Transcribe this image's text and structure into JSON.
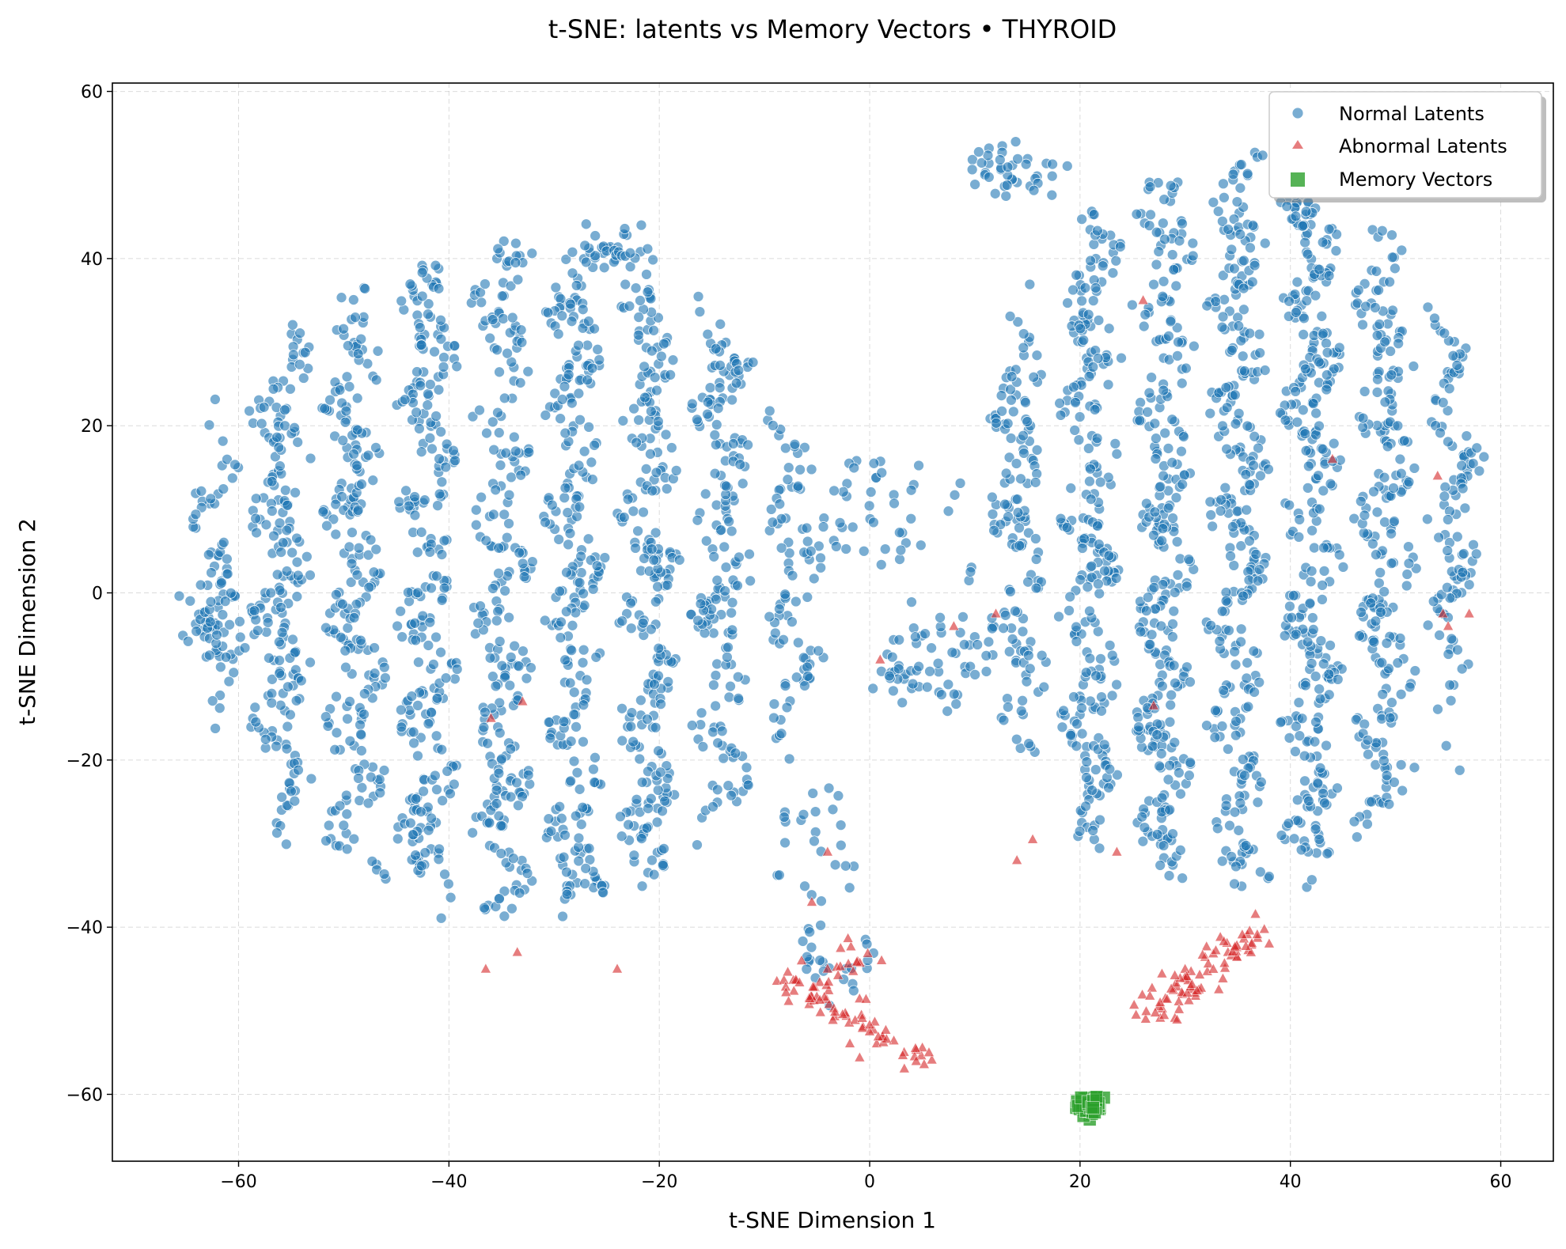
{
  "chart_data": {
    "type": "scatter",
    "title": "t-SNE: latents vs Memory Vectors • THYROID",
    "xlabel": "t-SNE Dimension 1",
    "ylabel": "t-SNE Dimension 2",
    "xlim": [
      -72,
      65
    ],
    "ylim": [
      -68,
      61
    ],
    "xticks": [
      -60,
      -40,
      -20,
      0,
      20,
      40,
      60
    ],
    "yticks": [
      -60,
      -40,
      -20,
      0,
      20,
      40,
      60
    ],
    "xtick_labels": [
      "−60",
      "−40",
      "−20",
      "0",
      "20",
      "40",
      "60"
    ],
    "ytick_labels": [
      "−60",
      "−40",
      "−20",
      "0",
      "20",
      "40",
      "60"
    ],
    "grid": true,
    "legend_position": "top-right",
    "series": [
      {
        "name": "Normal Latents",
        "marker": "circle",
        "color": "#1f77b4",
        "clusters": [
          {
            "cx": -34,
            "cy": 2,
            "rx": 30,
            "ry": 40,
            "n": 1700
          },
          {
            "cx": 34,
            "cy": 8,
            "rx": 24,
            "ry": 44,
            "n": 1600
          },
          {
            "cx": -62,
            "cy": -2,
            "rx": 3,
            "ry": 6,
            "n": 40
          },
          {
            "cx": -24,
            "cy": 41,
            "rx": 3,
            "ry": 2,
            "n": 30
          },
          {
            "cx": 14,
            "cy": 51,
            "rx": 4,
            "ry": 3,
            "n": 40
          },
          {
            "cx": 6,
            "cy": -9,
            "rx": 5,
            "ry": 6,
            "n": 60
          },
          {
            "cx": 0,
            "cy": 10,
            "rx": 5,
            "ry": 8,
            "n": 40
          },
          {
            "cx": -3,
            "cy": -44,
            "rx": 4,
            "ry": 4,
            "n": 25
          },
          {
            "cx": -6,
            "cy": -30,
            "rx": 4,
            "ry": 8,
            "n": 25
          }
        ]
      },
      {
        "name": "Abnormal Latents",
        "marker": "triangle",
        "color": "#d62728",
        "segments": [
          {
            "x0": -7,
            "y0": -47,
            "x1": 5,
            "y1": -56,
            "n": 70
          },
          {
            "x0": -4,
            "y0": -45,
            "x1": 1,
            "y1": -44,
            "n": 15
          },
          {
            "x0": 26,
            "y0": -51,
            "x1": 37,
            "y1": -40,
            "n": 85
          }
        ],
        "scattered": [
          [
            -36,
            -15
          ],
          [
            -33,
            -13
          ],
          [
            -36.5,
            -45
          ],
          [
            -33.5,
            -43
          ],
          [
            -24,
            -45
          ],
          [
            -5.5,
            -37
          ],
          [
            -4,
            -31
          ],
          [
            -4,
            -45
          ],
          [
            1,
            -8
          ],
          [
            8,
            -4
          ],
          [
            12,
            -2.5
          ],
          [
            14,
            -32
          ],
          [
            15.5,
            -29.5
          ],
          [
            23.5,
            -31
          ],
          [
            26,
            35
          ],
          [
            27,
            -13.5
          ],
          [
            44,
            16
          ],
          [
            54,
            14
          ],
          [
            54.5,
            -2.5
          ],
          [
            57,
            -2.5
          ],
          [
            55,
            -4
          ]
        ]
      },
      {
        "name": "Memory Vectors",
        "marker": "square",
        "color": "#2ca02c",
        "clusters": [
          {
            "cx": 20.9,
            "cy": -61.2,
            "rx": 1.4,
            "ry": 1.5,
            "n": 60
          }
        ]
      }
    ]
  }
}
